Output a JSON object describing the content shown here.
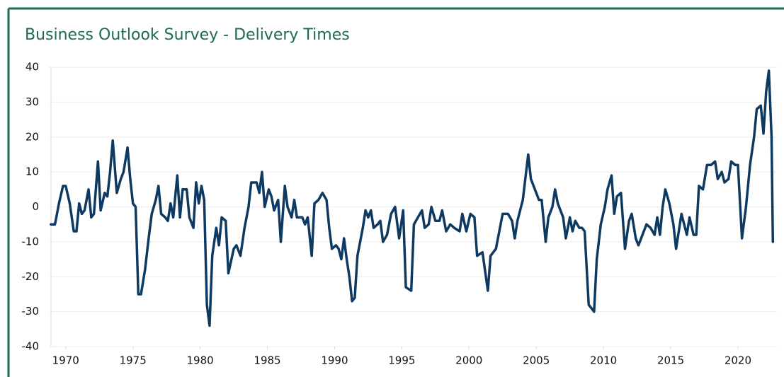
{
  "chart_data": {
    "type": "line",
    "title": "Business Outlook Survey - Delivery Times",
    "x": [
      1968.9,
      1969.2,
      1969.5,
      1969.8,
      1970.0,
      1970.3,
      1970.6,
      1970.8,
      1971.0,
      1971.2,
      1971.4,
      1971.7,
      1971.9,
      1972.1,
      1972.4,
      1972.6,
      1972.9,
      1973.1,
      1973.3,
      1973.5,
      1973.8,
      1974.1,
      1974.3,
      1974.6,
      1974.8,
      1975.0,
      1975.2,
      1975.4,
      1975.6,
      1975.9,
      1976.2,
      1976.4,
      1976.7,
      1976.9,
      1977.1,
      1977.4,
      1977.6,
      1977.8,
      1978.0,
      1978.3,
      1978.5,
      1978.7,
      1979.0,
      1979.2,
      1979.5,
      1979.7,
      1979.9,
      1980.1,
      1980.3,
      1980.5,
      1980.7,
      1980.9,
      1981.2,
      1981.4,
      1981.6,
      1981.9,
      1982.1,
      1982.5,
      1982.7,
      1983.0,
      1983.3,
      1983.6,
      1983.8,
      1984.2,
      1984.4,
      1984.6,
      1984.8,
      1985.1,
      1985.3,
      1985.5,
      1985.8,
      1986.0,
      1986.3,
      1986.5,
      1986.8,
      1987.0,
      1987.2,
      1987.6,
      1987.8,
      1988.0,
      1988.3,
      1988.5,
      1988.8,
      1989.1,
      1989.4,
      1989.6,
      1989.8,
      1990.1,
      1990.3,
      1990.5,
      1990.7,
      1990.9,
      1991.1,
      1991.3,
      1991.5,
      1991.7,
      1992.1,
      1992.3,
      1992.5,
      1992.7,
      1992.9,
      1993.2,
      1993.4,
      1993.6,
      1993.9,
      1994.2,
      1994.5,
      1994.6,
      1994.8,
      1995.1,
      1995.3,
      1995.7,
      1995.9,
      1996.2,
      1996.5,
      1996.7,
      1997.0,
      1997.2,
      1997.5,
      1997.8,
      1998.0,
      1998.3,
      1998.6,
      1998.9,
      1999.3,
      1999.5,
      1999.8,
      2000.1,
      2000.4,
      2000.6,
      2001.0,
      2001.4,
      2001.6,
      2002.0,
      2002.3,
      2002.5,
      2002.9,
      2003.2,
      2003.4,
      2003.6,
      2004.0,
      2004.4,
      2004.6,
      2005.0,
      2005.2,
      2005.4,
      2005.7,
      2005.9,
      2006.2,
      2006.4,
      2006.6,
      2007.0,
      2007.2,
      2007.5,
      2007.7,
      2007.9,
      2008.2,
      2008.4,
      2008.6,
      2008.9,
      2009.1,
      2009.3,
      2009.5,
      2009.8,
      2010.1,
      2010.3,
      2010.6,
      2010.8,
      2011.0,
      2011.3,
      2011.6,
      2011.9,
      2012.1,
      2012.4,
      2012.6,
      2012.9,
      2013.2,
      2013.5,
      2013.8,
      2014.0,
      2014.2,
      2014.4,
      2014.6,
      2014.9,
      2015.2,
      2015.4,
      2015.8,
      2016.0,
      2016.2,
      2016.4,
      2016.7,
      2016.9,
      2017.1,
      2017.4,
      2017.7,
      2018.0,
      2018.3,
      2018.5,
      2018.8,
      2019.0,
      2019.3,
      2019.5,
      2019.8,
      2020.0,
      2020.3,
      2020.6,
      2020.9,
      2021.2,
      2021.4,
      2021.7,
      2021.9,
      2022.1,
      2022.3,
      2022.5,
      2022.6
    ],
    "series": [
      {
        "name": "Delivery Times",
        "color": "#0e3a62",
        "values": [
          -5,
          -5,
          1,
          6,
          6,
          1,
          -7,
          -7,
          1,
          -2,
          -1,
          5,
          -3,
          -2,
          13,
          -1,
          4,
          3,
          10,
          19,
          4,
          8,
          10,
          17,
          8,
          1,
          0,
          -25,
          -25,
          -18,
          -8,
          -2,
          2,
          6,
          -2,
          -3,
          -4,
          1,
          -3,
          9,
          -3,
          5,
          5,
          -3,
          -6,
          7,
          1,
          6,
          2,
          -28,
          -34,
          -14,
          -6,
          -11,
          -3,
          -4,
          -19,
          -12,
          -11,
          -14,
          -6,
          0,
          7,
          7,
          4,
          10,
          0,
          5,
          3,
          -1,
          2,
          -10,
          6,
          0,
          -3,
          2,
          -3,
          -3,
          -5,
          -3,
          -14,
          1,
          2,
          4,
          2,
          -6,
          -12,
          -11,
          -12,
          -15,
          -9,
          -15,
          -20,
          -27,
          -26,
          -14,
          -6,
          -1,
          -3,
          -1,
          -6,
          -5,
          -4,
          -10,
          -8,
          -2,
          0,
          -3,
          -9,
          -1,
          -23,
          -24,
          -5,
          -3,
          -1,
          -6,
          -5,
          0,
          -4,
          -4,
          -1,
          -7,
          -5,
          -6,
          -7,
          -2,
          -7,
          -2,
          -3,
          -14,
          -13,
          -24,
          -14,
          -12,
          -6,
          -2,
          -2,
          -4,
          -9,
          -4,
          2,
          15,
          8,
          4,
          2,
          2,
          -10,
          -3,
          0,
          5,
          1,
          -3,
          -9,
          -3,
          -7,
          -4,
          -6,
          -6,
          -7,
          -28,
          -29,
          -30,
          -15,
          -5,
          0,
          5,
          9,
          -2,
          3,
          4,
          -12,
          -4,
          -2,
          -9,
          -11,
          -8,
          -5,
          -6,
          -8,
          -3,
          -8,
          0,
          5,
          1,
          -5,
          -12,
          -2,
          -5,
          -8,
          -3,
          -8,
          -8,
          6,
          5,
          12,
          12,
          13,
          8,
          10,
          7,
          8,
          13,
          12,
          12,
          -9,
          0,
          12,
          20,
          28,
          29,
          21,
          33,
          39,
          20,
          -10
        ]
      }
    ],
    "xlim": [
      1968.8,
      2022.9
    ],
    "xticks": [
      1970,
      1975,
      1980,
      1985,
      1990,
      1995,
      2000,
      2005,
      2010,
      2015,
      2020
    ],
    "ylim": [
      -40,
      40
    ],
    "yticks": [
      -40,
      -30,
      -20,
      -10,
      0,
      10,
      20,
      30,
      40
    ],
    "grid": true
  }
}
